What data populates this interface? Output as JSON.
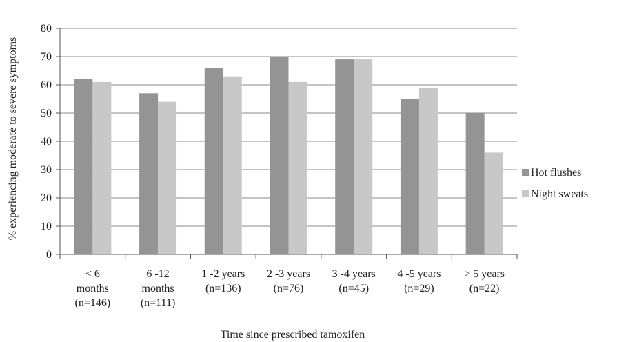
{
  "chart_data": {
    "type": "bar",
    "categories": [
      [
        "< 6",
        "months",
        "(n=146)"
      ],
      [
        "6 -12",
        "months",
        "(n=111)"
      ],
      [
        "1 -2 years",
        "(n=136)"
      ],
      [
        "2 -3 years",
        "(n=76)"
      ],
      [
        "3 -4 years",
        "(n=45)"
      ],
      [
        "4 -5 years",
        "(n=29)"
      ],
      [
        "> 5 years",
        "(n=22)"
      ]
    ],
    "series": [
      {
        "name": "Hot flushes",
        "color": "#949494",
        "values": [
          62,
          57,
          66,
          70,
          69,
          55,
          50
        ]
      },
      {
        "name": "Night sweats",
        "color": "#c8c8c8",
        "values": [
          61,
          54,
          63,
          61,
          69,
          59,
          36
        ]
      }
    ],
    "xlabel": "Time since prescribed tamoxifen",
    "ylabel": "% experiencing moderate to severe symptoms",
    "ylim": [
      0,
      80
    ],
    "yticks": [
      0,
      10,
      20,
      30,
      40,
      50,
      60,
      70,
      80
    ],
    "grid": true,
    "legend": "right"
  }
}
